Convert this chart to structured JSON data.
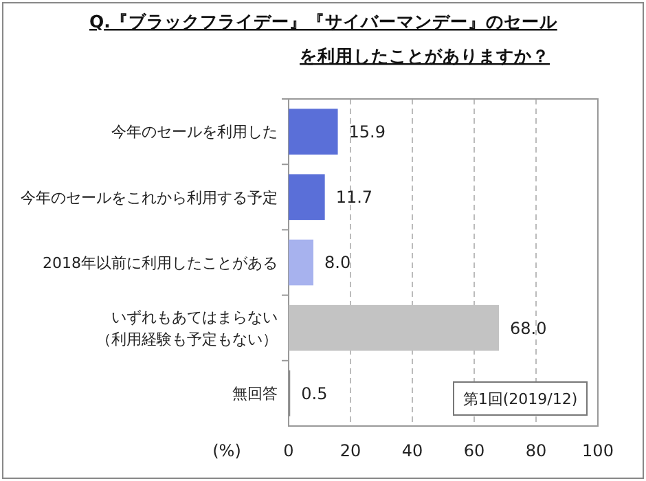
{
  "chart_data": {
    "type": "bar",
    "orientation": "horizontal",
    "title": "Q.『ブラックフライデー』『サイバーマンデー』のセールを利用したことがありますか？",
    "categories": [
      "今年のセールを利用した",
      "今年のセールをこれから利用する予定",
      "2018年以前に利用したことがある",
      "いずれもあてはまらない（利用経験も予定もない）",
      "無回答"
    ],
    "values": [
      15.9,
      11.7,
      8.0,
      68.0,
      0.5
    ],
    "value_labels": [
      "15.9",
      "11.7",
      "8.0",
      "68.0",
      "0.5"
    ],
    "colors": [
      "#5a6fd8",
      "#5a6fd8",
      "#a7b2ee",
      "#c3c3c3",
      "#8c8c8c"
    ],
    "xlabel": "(%)",
    "xlim": [
      0,
      100
    ],
    "xticks": [
      0,
      20,
      40,
      60,
      80,
      100
    ],
    "grid": "x",
    "annotations": [
      "第1回(2019/12)"
    ]
  }
}
